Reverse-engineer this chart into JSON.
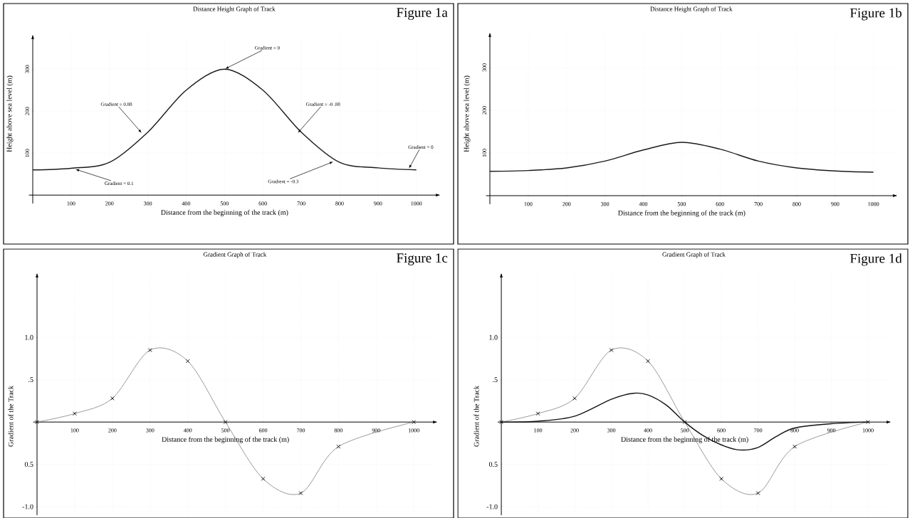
{
  "chart_data": [
    {
      "type": "line",
      "title": "Distance Height Graph of Track",
      "xlabel": "Distance from the beginning of the track (m)",
      "ylabel": "Height above sea level (m)",
      "x": [
        0,
        100,
        200,
        300,
        400,
        500,
        600,
        700,
        800,
        900,
        1000
      ],
      "series": [
        {
          "color": "#1a1a1a",
          "values": [
            60,
            64,
            78,
            150,
            250,
            300,
            250,
            150,
            78,
            65,
            60
          ]
        }
      ],
      "xlim": [
        -10,
        1060
      ],
      "ylim": [
        -20,
        380
      ],
      "xticks": [
        100,
        200,
        300,
        400,
        500,
        600,
        700,
        800,
        900,
        1000
      ],
      "yticks": [
        100,
        200,
        300
      ],
      "grid": true,
      "annotations": [
        "Figure 1a",
        {
          "text": "Gradient = 0",
          "x": 500,
          "y": 300
        },
        {
          "text": "Gradient = 0.88",
          "x": 285,
          "y": 147
        },
        {
          "text": "Gradient = -0 .88",
          "x": 690,
          "y": 147
        },
        {
          "text": "Gradient = 0.1",
          "x": 110,
          "y": 62
        },
        {
          "text": "Gradient = -0.3",
          "x": 785,
          "y": 80
        },
        {
          "text": "Gradient = 0",
          "x": 980,
          "y": 62
        }
      ]
    },
    {
      "type": "line",
      "title": "Distance Height Graph of Track",
      "xlabel": "Distance from the beginning of the track (m)",
      "ylabel": "Height above sea level (m)",
      "x": [
        0,
        100,
        200,
        300,
        400,
        500,
        600,
        700,
        800,
        900,
        1000
      ],
      "series": [
        {
          "color": "#1a1a1a",
          "values": [
            57,
            59,
            65,
            81,
            107,
            125,
            109,
            81,
            65,
            58,
            55
          ]
        }
      ],
      "xlim": [
        -10,
        1060
      ],
      "ylim": [
        -20,
        380
      ],
      "xticks": [
        100,
        200,
        300,
        400,
        500,
        600,
        700,
        800,
        900,
        1000
      ],
      "yticks": [
        100,
        200,
        300
      ],
      "grid": true,
      "annotations": [
        "Figure 1b"
      ]
    },
    {
      "type": "line",
      "title": "Gradient Graph of Track",
      "xlabel": "Distance from the beginning of the track (m)",
      "ylabel": "Gradient of the Track",
      "marker": "cross",
      "series": [
        {
          "color": "#555555",
          "x": [
            0,
            100,
            200,
            300,
            400,
            500,
            600,
            700,
            800,
            1000
          ],
          "values": [
            0,
            0.1,
            0.28,
            0.85,
            0.72,
            0,
            -0.67,
            -0.84,
            -0.29,
            0
          ]
        }
      ],
      "xlim": [
        -10,
        1060
      ],
      "ylim": [
        -1.1,
        1.75
      ],
      "xticks": [
        100,
        200,
        300,
        400,
        500,
        600,
        700,
        800,
        900,
        1000
      ],
      "yticks": [
        {
          "value": 1,
          "label": "1.0"
        },
        {
          "value": 0.5,
          "label": ".5"
        },
        {
          "value": -0.5,
          "label": "0.5"
        },
        {
          "value": -1,
          "label": "-1.0"
        }
      ],
      "grid": true,
      "annotations": [
        "Figure 1c"
      ]
    },
    {
      "type": "line",
      "title": "Gradient Graph of Track",
      "xlabel": "Distance from the beginning of the track (m)",
      "ylabel": "Gradient of the Track",
      "marker": "cross",
      "series": [
        {
          "color": "#555555",
          "x": [
            0,
            100,
            200,
            300,
            400,
            500,
            600,
            700,
            800,
            1000
          ],
          "values": [
            0,
            0.1,
            0.28,
            0.85,
            0.72,
            0,
            -0.67,
            -0.84,
            -0.29,
            0
          ]
        },
        {
          "color": "#111111",
          "marker": "none",
          "x": [
            0,
            100,
            200,
            300,
            360,
            400,
            450,
            500,
            550,
            600,
            650,
            700,
            750,
            800,
            900,
            1000
          ],
          "values": [
            0,
            0.01,
            0.07,
            0.27,
            0.34,
            0.32,
            0.2,
            0,
            -0.16,
            -0.27,
            -0.33,
            -0.3,
            -0.17,
            -0.07,
            -0.02,
            0
          ]
        }
      ],
      "xlim": [
        -10,
        1060
      ],
      "ylim": [
        -1.1,
        1.75
      ],
      "xticks": [
        100,
        200,
        300,
        400,
        500,
        600,
        700,
        800,
        900,
        1000
      ],
      "yticks": [
        {
          "value": 1,
          "label": "1.0"
        },
        {
          "value": 0.5,
          "label": ".5"
        },
        {
          "value": -0.5,
          "label": "0.5"
        },
        {
          "value": -1,
          "label": "-1.0"
        }
      ],
      "grid": true,
      "annotations": [
        "Figure 1d"
      ]
    }
  ]
}
